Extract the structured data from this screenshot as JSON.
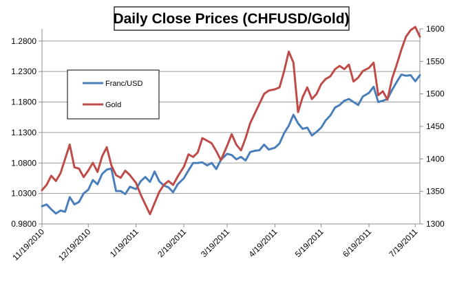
{
  "chart_data": {
    "type": "line",
    "title": "Daily Close Prices (CHFUSD/Gold)",
    "x_tick_labels": [
      "11/19/2010",
      "12/19/2010",
      "1/19/2011",
      "2/19/2011",
      "3/19/2011",
      "4/19/2011",
      "5/19/2011",
      "6/19/2011",
      "7/19/2011"
    ],
    "y_left": {
      "ticks": [
        "0.9800",
        "1.0300",
        "1.0800",
        "1.1300",
        "1.1800",
        "1.2300",
        "1.2800"
      ],
      "range": [
        0.98,
        1.3
      ]
    },
    "y_right": {
      "ticks": [
        "1300",
        "1350",
        "1400",
        "1450",
        "1500",
        "1550",
        "1600"
      ],
      "range": [
        1300,
        1600
      ]
    },
    "grid": "horizontal",
    "legend_position": "left-inside",
    "series": [
      {
        "name": "Franc/USD",
        "axis": "left",
        "color": "#4a7ebb",
        "points": [
          [
            "11/19/2010",
            1.009
          ],
          [
            "11/22/2010",
            1.012
          ],
          [
            "11/25/2010",
            1.004
          ],
          [
            "11/28/2010",
            0.997
          ],
          [
            "12/1/2010",
            1.002
          ],
          [
            "12/4/2010",
            1.0
          ],
          [
            "12/7/2010",
            1.024
          ],
          [
            "12/10/2010",
            1.012
          ],
          [
            "12/13/2010",
            1.016
          ],
          [
            "12/16/2010",
            1.03
          ],
          [
            "12/19/2010",
            1.036
          ],
          [
            "12/22/2010",
            1.052
          ],
          [
            "12/25/2010",
            1.045
          ],
          [
            "12/28/2010",
            1.062
          ],
          [
            "12/31/2010",
            1.069
          ],
          [
            "1/3/2011",
            1.071
          ],
          [
            "1/6/2011",
            1.034
          ],
          [
            "1/9/2011",
            1.034
          ],
          [
            "1/12/2011",
            1.029
          ],
          [
            "1/15/2011",
            1.041
          ],
          [
            "1/19/2011",
            1.037
          ],
          [
            "1/22/2011",
            1.05
          ],
          [
            "1/25/2011",
            1.057
          ],
          [
            "1/28/2011",
            1.049
          ],
          [
            "1/31/2011",
            1.066
          ],
          [
            "2/3/2011",
            1.05
          ],
          [
            "2/6/2011",
            1.043
          ],
          [
            "2/9/2011",
            1.04
          ],
          [
            "2/12/2011",
            1.032
          ],
          [
            "2/15/2011",
            1.045
          ],
          [
            "2/19/2011",
            1.055
          ],
          [
            "2/22/2011",
            1.068
          ],
          [
            "2/25/2011",
            1.08
          ],
          [
            "2/28/2011",
            1.08
          ],
          [
            "3/3/2011",
            1.081
          ],
          [
            "3/6/2011",
            1.076
          ],
          [
            "3/9/2011",
            1.08
          ],
          [
            "3/12/2011",
            1.07
          ],
          [
            "3/15/2011",
            1.085
          ],
          [
            "3/19/2011",
            1.095
          ],
          [
            "3/22/2011",
            1.093
          ],
          [
            "3/25/2011",
            1.086
          ],
          [
            "3/28/2011",
            1.09
          ],
          [
            "3/31/2011",
            1.084
          ],
          [
            "4/3/2011",
            1.098
          ],
          [
            "4/6/2011",
            1.1
          ],
          [
            "4/9/2011",
            1.101
          ],
          [
            "4/12/2011",
            1.11
          ],
          [
            "4/15/2011",
            1.102
          ],
          [
            "4/19/2011",
            1.105
          ],
          [
            "4/22/2011",
            1.112
          ],
          [
            "4/25/2011",
            1.129
          ],
          [
            "4/28/2011",
            1.141
          ],
          [
            "5/1/2011",
            1.159
          ],
          [
            "5/4/2011",
            1.145
          ],
          [
            "5/7/2011",
            1.136
          ],
          [
            "5/10/2011",
            1.138
          ],
          [
            "5/13/2011",
            1.125
          ],
          [
            "5/16/2011",
            1.131
          ],
          [
            "5/19/2011",
            1.138
          ],
          [
            "5/22/2011",
            1.15
          ],
          [
            "5/25/2011",
            1.158
          ],
          [
            "5/28/2011",
            1.171
          ],
          [
            "5/31/2011",
            1.175
          ],
          [
            "6/3/2011",
            1.182
          ],
          [
            "6/6/2011",
            1.185
          ],
          [
            "6/9/2011",
            1.18
          ],
          [
            "6/12/2011",
            1.175
          ],
          [
            "6/15/2011",
            1.189
          ],
          [
            "6/19/2011",
            1.195
          ],
          [
            "6/22/2011",
            1.205
          ],
          [
            "6/25/2011",
            1.18
          ],
          [
            "6/28/2011",
            1.182
          ],
          [
            "7/1/2011",
            1.185
          ],
          [
            "7/4/2011",
            1.2
          ],
          [
            "7/7/2011",
            1.213
          ],
          [
            "7/10/2011",
            1.225
          ],
          [
            "7/13/2011",
            1.223
          ],
          [
            "7/16/2011",
            1.224
          ],
          [
            "7/19/2011",
            1.214
          ],
          [
            "7/22/2011",
            1.224
          ]
        ]
      },
      {
        "name": "Gold",
        "axis": "right",
        "color": "#be4b48",
        "points": [
          [
            "11/19/2010",
            1352
          ],
          [
            "11/22/2010",
            1360
          ],
          [
            "11/25/2010",
            1374
          ],
          [
            "11/28/2010",
            1366
          ],
          [
            "12/1/2010",
            1378
          ],
          [
            "12/4/2010",
            1400
          ],
          [
            "12/7/2010",
            1422
          ],
          [
            "12/10/2010",
            1387
          ],
          [
            "12/13/2010",
            1385
          ],
          [
            "12/16/2010",
            1372
          ],
          [
            "12/19/2010",
            1382
          ],
          [
            "12/22/2010",
            1394
          ],
          [
            "12/25/2010",
            1380
          ],
          [
            "12/28/2010",
            1404
          ],
          [
            "12/31/2010",
            1418
          ],
          [
            "1/3/2011",
            1390
          ],
          [
            "1/6/2011",
            1375
          ],
          [
            "1/9/2011",
            1371
          ],
          [
            "1/12/2011",
            1382
          ],
          [
            "1/15/2011",
            1375
          ],
          [
            "1/19/2011",
            1363
          ],
          [
            "1/22/2011",
            1345
          ],
          [
            "1/25/2011",
            1330
          ],
          [
            "1/28/2011",
            1315
          ],
          [
            "1/31/2011",
            1332
          ],
          [
            "2/3/2011",
            1349
          ],
          [
            "2/6/2011",
            1360
          ],
          [
            "2/9/2011",
            1366
          ],
          [
            "2/12/2011",
            1360
          ],
          [
            "2/15/2011",
            1373
          ],
          [
            "2/19/2011",
            1388
          ],
          [
            "2/22/2011",
            1407
          ],
          [
            "2/25/2011",
            1403
          ],
          [
            "2/28/2011",
            1410
          ],
          [
            "3/3/2011",
            1432
          ],
          [
            "3/6/2011",
            1428
          ],
          [
            "3/9/2011",
            1424
          ],
          [
            "3/12/2011",
            1412
          ],
          [
            "3/15/2011",
            1398
          ],
          [
            "3/19/2011",
            1420
          ],
          [
            "3/22/2011",
            1438
          ],
          [
            "3/25/2011",
            1422
          ],
          [
            "3/28/2011",
            1413
          ],
          [
            "3/31/2011",
            1432
          ],
          [
            "4/3/2011",
            1455
          ],
          [
            "4/6/2011",
            1470
          ],
          [
            "4/9/2011",
            1485
          ],
          [
            "4/12/2011",
            1500
          ],
          [
            "4/15/2011",
            1505
          ],
          [
            "4/19/2011",
            1507
          ],
          [
            "4/22/2011",
            1510
          ],
          [
            "4/25/2011",
            1535
          ],
          [
            "4/28/2011",
            1565
          ],
          [
            "5/1/2011",
            1548
          ],
          [
            "5/4/2011",
            1472
          ],
          [
            "5/7/2011",
            1495
          ],
          [
            "5/10/2011",
            1510
          ],
          [
            "5/13/2011",
            1492
          ],
          [
            "5/16/2011",
            1500
          ],
          [
            "5/19/2011",
            1515
          ],
          [
            "5/22/2011",
            1523
          ],
          [
            "5/25/2011",
            1527
          ],
          [
            "5/28/2011",
            1538
          ],
          [
            "5/31/2011",
            1543
          ],
          [
            "6/3/2011",
            1538
          ],
          [
            "6/6/2011",
            1545
          ],
          [
            "6/9/2011",
            1519
          ],
          [
            "6/12/2011",
            1525
          ],
          [
            "6/15/2011",
            1535
          ],
          [
            "6/19/2011",
            1540
          ],
          [
            "6/22/2011",
            1548
          ],
          [
            "6/25/2011",
            1498
          ],
          [
            "6/28/2011",
            1504
          ],
          [
            "7/1/2011",
            1491
          ],
          [
            "7/4/2011",
            1524
          ],
          [
            "7/7/2011",
            1545
          ],
          [
            "7/10/2011",
            1568
          ],
          [
            "7/13/2011",
            1588
          ],
          [
            "7/16/2011",
            1598
          ],
          [
            "7/19/2011",
            1603
          ],
          [
            "7/22/2011",
            1588
          ]
        ]
      }
    ]
  }
}
